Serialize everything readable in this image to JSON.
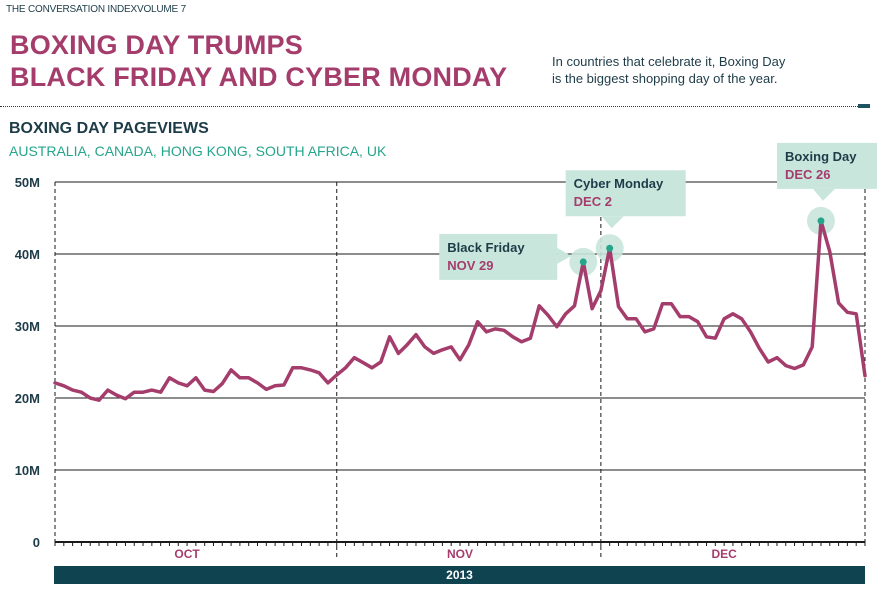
{
  "header": {
    "tag": "THE CONVERSATION INDEXVOLUME 7",
    "headline_line1": "BOXING DAY TRUMPS",
    "headline_line2": "BLACK FRIDAY AND CYBER MONDAY",
    "blurb_line1": "In countries that celebrate it, Boxing Day",
    "blurb_line2": "is the biggest shopping day of the year."
  },
  "colors": {
    "brand_magenta": "#a43d6c",
    "dark_teal": "#1d3c48",
    "accent_green": "#26a58b",
    "callout_bg": "#c9e6dd",
    "year_bar": "#0f4350"
  },
  "chart_data": {
    "type": "line",
    "title": "BOXING DAY PAGEVIEWS",
    "subtitle": "AUSTRALIA, CANADA, HONG KONG, SOUTH AFRICA, UK",
    "xlabel": "2013",
    "ylabel": "",
    "x_start": "2013-09-30",
    "x_end": "2013-12-31",
    "ylim": [
      0,
      50
    ],
    "y_ticks": [
      {
        "value": 0,
        "label": "0"
      },
      {
        "value": 10,
        "label": "10M"
      },
      {
        "value": 20,
        "label": "20M"
      },
      {
        "value": 30,
        "label": "30M"
      },
      {
        "value": 40,
        "label": "40M"
      },
      {
        "value": 50,
        "label": "50M"
      }
    ],
    "month_labels": [
      {
        "label": "OCT",
        "date": "2013-10-15"
      },
      {
        "label": "NOV",
        "date": "2013-11-15"
      },
      {
        "label": "DEC",
        "date": "2013-12-15"
      }
    ],
    "month_dividers": [
      "2013-10-01",
      "2013-11-01",
      "2013-12-01"
    ],
    "grid": true,
    "series": [
      {
        "color": "#a43d6c",
        "values": [
          [
            "2013-09-30",
            22.1
          ],
          [
            "2013-10-01",
            21.7
          ],
          [
            "2013-10-02",
            21.1
          ],
          [
            "2013-10-03",
            20.8
          ],
          [
            "2013-10-04",
            20.0
          ],
          [
            "2013-10-05",
            19.7
          ],
          [
            "2013-10-06",
            21.1
          ],
          [
            "2013-10-07",
            20.4
          ],
          [
            "2013-10-08",
            19.9
          ],
          [
            "2013-10-09",
            20.8
          ],
          [
            "2013-10-10",
            20.8
          ],
          [
            "2013-10-11",
            21.1
          ],
          [
            "2013-10-12",
            20.8
          ],
          [
            "2013-10-13",
            22.8
          ],
          [
            "2013-10-14",
            22.1
          ],
          [
            "2013-10-15",
            21.7
          ],
          [
            "2013-10-16",
            22.8
          ],
          [
            "2013-10-17",
            21.1
          ],
          [
            "2013-10-18",
            20.9
          ],
          [
            "2013-10-19",
            22.0
          ],
          [
            "2013-10-20",
            23.9
          ],
          [
            "2013-10-21",
            22.8
          ],
          [
            "2013-10-22",
            22.8
          ],
          [
            "2013-10-23",
            22.1
          ],
          [
            "2013-10-24",
            21.2
          ],
          [
            "2013-10-25",
            21.7
          ],
          [
            "2013-10-26",
            21.8
          ],
          [
            "2013-10-27",
            24.2
          ],
          [
            "2013-10-28",
            24.2
          ],
          [
            "2013-10-29",
            23.9
          ],
          [
            "2013-10-30",
            23.5
          ],
          [
            "2013-10-31",
            22.1
          ],
          [
            "2013-11-01",
            23.2
          ],
          [
            "2013-11-02",
            24.2
          ],
          [
            "2013-11-03",
            25.6
          ],
          [
            "2013-11-04",
            24.9
          ],
          [
            "2013-11-05",
            24.2
          ],
          [
            "2013-11-06",
            25.0
          ],
          [
            "2013-11-07",
            28.5
          ],
          [
            "2013-11-08",
            26.2
          ],
          [
            "2013-11-09",
            27.4
          ],
          [
            "2013-11-10",
            28.8
          ],
          [
            "2013-11-11",
            27.1
          ],
          [
            "2013-11-12",
            26.2
          ],
          [
            "2013-11-13",
            26.7
          ],
          [
            "2013-11-14",
            27.1
          ],
          [
            "2013-11-15",
            25.3
          ],
          [
            "2013-11-16",
            27.4
          ],
          [
            "2013-11-17",
            30.6
          ],
          [
            "2013-11-18",
            29.2
          ],
          [
            "2013-11-19",
            29.6
          ],
          [
            "2013-11-20",
            29.4
          ],
          [
            "2013-11-21",
            28.5
          ],
          [
            "2013-11-22",
            27.8
          ],
          [
            "2013-11-23",
            28.3
          ],
          [
            "2013-11-24",
            32.8
          ],
          [
            "2013-11-25",
            31.5
          ],
          [
            "2013-11-26",
            29.9
          ],
          [
            "2013-11-27",
            31.7
          ],
          [
            "2013-11-28",
            32.8
          ],
          [
            "2013-11-29",
            38.9
          ],
          [
            "2013-11-30",
            32.4
          ],
          [
            "2013-12-01",
            34.9
          ],
          [
            "2013-12-02",
            40.8
          ],
          [
            "2013-12-03",
            32.7
          ],
          [
            "2013-12-04",
            31.0
          ],
          [
            "2013-12-05",
            31.0
          ],
          [
            "2013-12-06",
            29.2
          ],
          [
            "2013-12-07",
            29.6
          ],
          [
            "2013-12-08",
            33.1
          ],
          [
            "2013-12-09",
            33.1
          ],
          [
            "2013-12-10",
            31.3
          ],
          [
            "2013-12-11",
            31.3
          ],
          [
            "2013-12-12",
            30.6
          ],
          [
            "2013-12-13",
            28.5
          ],
          [
            "2013-12-14",
            28.3
          ],
          [
            "2013-12-15",
            31.0
          ],
          [
            "2013-12-16",
            31.7
          ],
          [
            "2013-12-17",
            31.0
          ],
          [
            "2013-12-18",
            29.2
          ],
          [
            "2013-12-19",
            26.9
          ],
          [
            "2013-12-20",
            25.0
          ],
          [
            "2013-12-21",
            25.6
          ],
          [
            "2013-12-22",
            24.5
          ],
          [
            "2013-12-23",
            24.1
          ],
          [
            "2013-12-24",
            24.6
          ],
          [
            "2013-12-25",
            27.1
          ],
          [
            "2013-12-26",
            44.6
          ],
          [
            "2013-12-27",
            40.3
          ],
          [
            "2013-12-28",
            33.2
          ],
          [
            "2013-12-29",
            31.9
          ],
          [
            "2013-12-30",
            31.7
          ],
          [
            "2013-12-31",
            23.1
          ]
        ]
      }
    ],
    "annotations": [
      {
        "name": "black-friday",
        "title": "Black Friday",
        "date_label": "NOV 29",
        "x": "2013-11-29",
        "y": 38.9,
        "side": "left"
      },
      {
        "name": "cyber-monday",
        "title": "Cyber Monday",
        "date_label": "DEC 2",
        "x": "2013-12-02",
        "y": 40.8,
        "side": "above"
      },
      {
        "name": "boxing-day",
        "title": "Boxing Day",
        "date_label": "DEC 26",
        "x": "2013-12-26",
        "y": 44.6,
        "side": "above"
      }
    ]
  }
}
